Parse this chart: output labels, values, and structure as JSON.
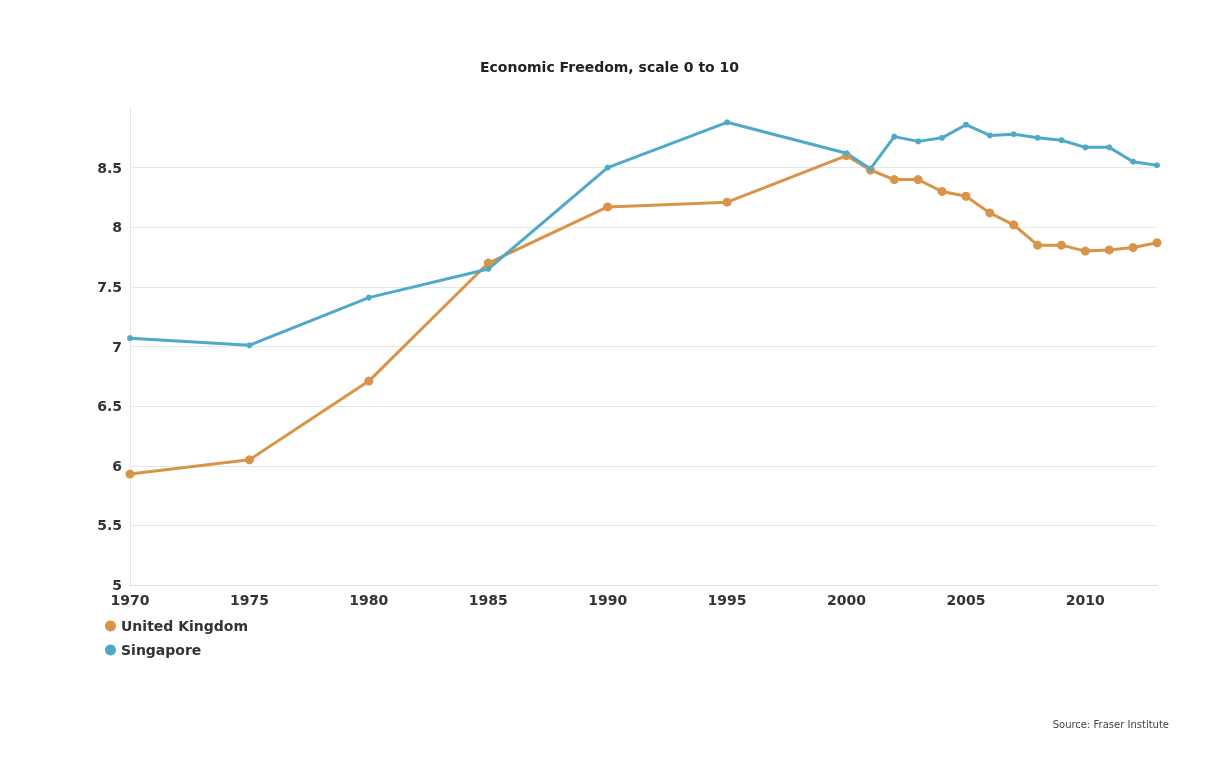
{
  "chart_data": {
    "type": "line",
    "title": "Economic Freedom, scale 0 to 10",
    "annotations": [
      "Source: Fraser Institute"
    ],
    "x": [
      1970,
      1975,
      1980,
      1985,
      1990,
      1995,
      2000,
      2001,
      2002,
      2003,
      2004,
      2005,
      2006,
      2007,
      2008,
      2009,
      2010,
      2011,
      2012,
      2013
    ],
    "series": [
      {
        "name": "United Kingdom",
        "color": "#d9944a",
        "values": [
          5.93,
          6.05,
          6.71,
          7.7,
          8.17,
          8.21,
          8.6,
          8.48,
          8.4,
          8.4,
          8.3,
          8.26,
          8.12,
          8.02,
          7.85,
          7.85,
          7.8,
          7.81,
          7.83,
          7.87
        ]
      },
      {
        "name": "Singapore",
        "color": "#4fa9c8",
        "values": [
          7.07,
          7.01,
          7.41,
          7.65,
          8.5,
          8.88,
          8.62,
          8.49,
          8.76,
          8.72,
          8.75,
          8.86,
          8.77,
          8.78,
          8.75,
          8.73,
          8.67,
          8.67,
          8.55,
          8.52
        ]
      }
    ],
    "xlim": [
      1970,
      2013
    ],
    "xticks": [
      1970,
      1975,
      1980,
      1985,
      1990,
      1995,
      2000,
      2005,
      2010
    ],
    "ylim": [
      5,
      9
    ],
    "yticks": [
      5,
      5.5,
      6,
      6.5,
      7,
      7.5,
      8,
      8.5
    ],
    "grid": "y",
    "legend": "bottom left",
    "marker": "circle",
    "line_style": "solid"
  }
}
